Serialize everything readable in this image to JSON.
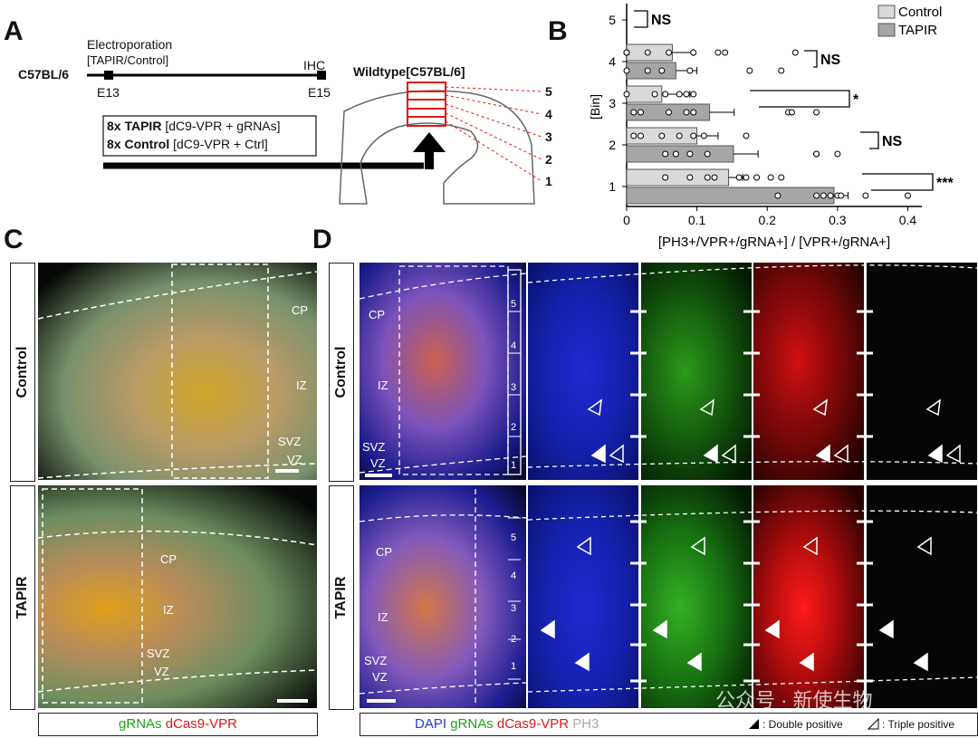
{
  "panelA": {
    "letter": "A",
    "mouse": "C57BL/6",
    "electroporation": "Electroporation",
    "electroporation_sub": "[TAPIR/Control]",
    "ihc": "IHC",
    "e13": "E13",
    "e15": "E15",
    "line1_bold": "8x TAPIR",
    "line1_rest": " [dC9-VPR + gRNAs]",
    "line2_bold": "8x Control",
    "line2_rest": " [dC9-VPR + Ctrl]",
    "wildtype": "Wildtype[C57BL/6]",
    "bins": [
      "5",
      "4",
      "3",
      "2",
      "1"
    ]
  },
  "panelB": {
    "letter": "B",
    "legend": [
      {
        "label": "Control",
        "color": "#d9d9d9"
      },
      {
        "label": "TAPIR",
        "color": "#a6a6a6"
      }
    ],
    "ylabel": "[Bin]",
    "xlabel": "[PH3+/VPR+/gRNA+] / [VPR+/gRNA+]",
    "significance": [
      "NS",
      "NS",
      "*",
      "NS",
      "***"
    ]
  },
  "chart_data": {
    "type": "bar",
    "orientation": "horizontal",
    "categories": [
      "5",
      "4",
      "3",
      "2",
      "1"
    ],
    "series": [
      {
        "name": "Control",
        "values": [
          0.0,
          0.065,
          0.05,
          0.1,
          0.145
        ],
        "errors": [
          0.0,
          0.03,
          0.04,
          0.03,
          0.02
        ]
      },
      {
        "name": "TAPIR",
        "values": [
          0.0,
          0.07,
          0.118,
          0.152,
          0.295
        ],
        "errors": [
          0.0,
          0.03,
          0.035,
          0.035,
          0.02
        ]
      }
    ],
    "points": {
      "4": {
        "Control": [
          0.0,
          0.0,
          0.0,
          0.03,
          0.06,
          0.095,
          0.13,
          0.14,
          0.24
        ],
        "TAPIR": [
          0.0,
          0.03,
          0.05,
          0.09,
          0.175,
          0.22
        ]
      },
      "3": {
        "Control": [
          0.0,
          0.04,
          0.055,
          0.075,
          0.085,
          0.095
        ],
        "TAPIR": [
          0.01,
          0.02,
          0.06,
          0.085,
          0.095,
          0.23,
          0.235,
          0.27
        ]
      },
      "2": {
        "Control": [
          0.01,
          0.02,
          0.05,
          0.075,
          0.095,
          0.11,
          0.17
        ],
        "TAPIR": [
          0.055,
          0.07,
          0.09,
          0.115,
          0.27,
          0.27,
          0.3
        ]
      },
      "1": {
        "Control": [
          0.055,
          0.09,
          0.115,
          0.125,
          0.16,
          0.17,
          0.185,
          0.205,
          0.22
        ],
        "TAPIR": [
          0.215,
          0.27,
          0.28,
          0.29,
          0.3,
          0.305,
          0.34,
          0.4
        ]
      }
    },
    "xticks": [
      "0",
      "0.1",
      "0.2",
      "0.3",
      "0.4"
    ],
    "xlim": [
      0,
      0.42
    ],
    "xlabel": "[PH3+/VPR+/gRNA+] / [VPR+/gRNA+]",
    "ylabel": "[Bin]",
    "legend_position": "top-right"
  },
  "panelC": {
    "letter": "C",
    "control": "Control",
    "tapir": "TAPIR",
    "cp": "CP",
    "iz": "IZ",
    "svz": "SVZ",
    "vz": "VZ",
    "legend_green": "gRNAs",
    "legend_red": "dCas9-VPR"
  },
  "panelD": {
    "letter": "D",
    "control": "Control",
    "tapir": "TAPIR",
    "cp": "CP",
    "iz": "IZ",
    "svz": "SVZ",
    "vz": "VZ",
    "bins": [
      "5",
      "4",
      "3",
      "2",
      "1"
    ],
    "legend_blue": "DAPI",
    "legend_green": "gRNAs",
    "legend_red": "dCas9-VPR",
    "legend_gray": "PH3",
    "legend_double": ": Double positive",
    "legend_triple": ": Triple positive"
  },
  "watermark": "公众号 · 新使生物",
  "colors": {
    "blue": "#1f3bd1",
    "green": "#1aa31a",
    "red": "#e01818",
    "gray": "#aaaaaa"
  }
}
